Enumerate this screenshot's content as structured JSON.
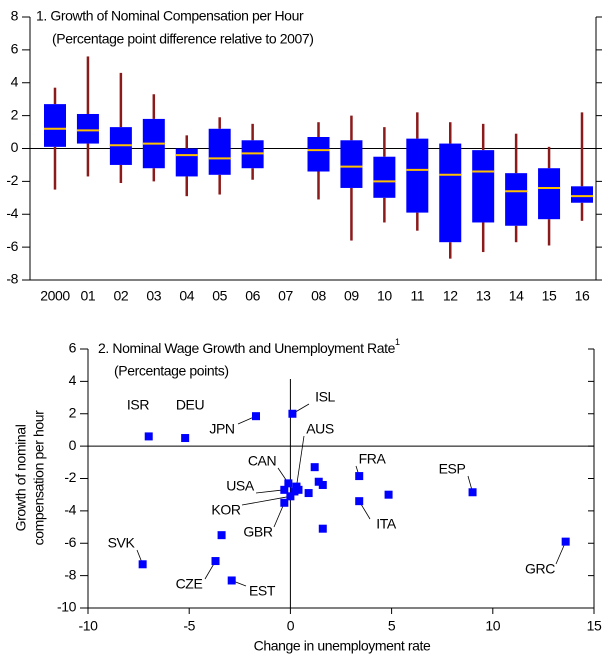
{
  "chart_data": [
    {
      "type": "box",
      "title": "1. Growth of Nominal Compensation per Hour",
      "subtitle": "(Percentage point difference relative to 2007)",
      "categories": [
        "2000",
        "01",
        "02",
        "03",
        "04",
        "05",
        "06",
        "07",
        "08",
        "09",
        "10",
        "11",
        "12",
        "13",
        "14",
        "15",
        "16"
      ],
      "high": [
        3.7,
        5.6,
        4.6,
        3.3,
        0.8,
        1.9,
        1.5,
        null,
        1.6,
        2.0,
        1.3,
        2.2,
        1.6,
        1.5,
        0.9,
        0.1,
        2.2
      ],
      "q3": [
        2.7,
        2.1,
        1.3,
        1.8,
        0.0,
        1.2,
        0.5,
        null,
        0.7,
        0.5,
        -0.5,
        0.6,
        0.3,
        -0.1,
        -1.5,
        -1.2,
        -2.3
      ],
      "median": [
        1.2,
        1.1,
        0.2,
        0.3,
        -0.4,
        -0.6,
        -0.3,
        null,
        -0.1,
        -1.1,
        -2.0,
        -1.3,
        -1.6,
        -1.4,
        -2.6,
        -2.4,
        -2.9
      ],
      "q1": [
        0.1,
        0.3,
        -1.0,
        -1.2,
        -1.7,
        -1.6,
        -1.2,
        null,
        -1.4,
        -2.4,
        -3.0,
        -3.9,
        -5.7,
        -4.5,
        -4.7,
        -4.3,
        -3.3
      ],
      "low": [
        -2.5,
        -1.7,
        -2.1,
        -2.0,
        -2.9,
        -2.8,
        -1.9,
        null,
        -3.1,
        -5.6,
        -4.5,
        -5.0,
        -6.7,
        -6.3,
        -5.7,
        -5.9,
        -4.4
      ],
      "box_color": "#0000ff",
      "whisker_color": "#8b1a1a",
      "median_color": "#ffc000",
      "ylim": [
        -8,
        8
      ],
      "yticks": [
        -8,
        -6,
        -4,
        -2,
        0,
        2,
        4,
        6,
        8
      ]
    },
    {
      "type": "scatter",
      "title": "2. Nominal Wage Growth and Unemployment Rate",
      "title_footnote": "1",
      "subtitle": "(Percentage points)",
      "xlabel": "Change in unemployment rate",
      "ylabel": [
        "Growth of nominal",
        "compensation per hour"
      ],
      "color": "#0000ff",
      "labels": [
        "ISR",
        "DEU",
        "JPN",
        "ISL",
        "AUS",
        "CAN",
        "USA",
        "KOR",
        "GBR",
        "FRA",
        "ESP",
        "ITA",
        "GRC",
        "SVK",
        "CZE",
        "EST",
        null,
        null,
        null,
        null,
        null,
        null,
        null,
        null,
        null
      ],
      "x": [
        -7.0,
        -5.2,
        -1.7,
        0.1,
        0.3,
        -0.1,
        -0.3,
        0.0,
        -0.3,
        3.4,
        9.0,
        3.4,
        13.6,
        -7.3,
        -3.7,
        -2.9,
        1.2,
        1.4,
        1.6,
        4.85,
        1.6,
        -3.4,
        0.9,
        0.2,
        0.4
      ],
      "y": [
        0.6,
        0.5,
        1.85,
        2.0,
        -2.5,
        -2.3,
        -2.7,
        -3.1,
        -3.5,
        -1.85,
        -2.85,
        -3.4,
        -5.9,
        -7.3,
        -7.1,
        -8.3,
        -1.3,
        -2.2,
        -2.4,
        -3.0,
        -5.1,
        -5.5,
        -2.9,
        -2.8,
        -2.7
      ],
      "xlim": [
        -10,
        15
      ],
      "xticks": [
        -10,
        -5,
        0,
        5,
        10,
        15
      ],
      "ylim": [
        -10,
        6
      ],
      "yticks": [
        -10,
        -8,
        -6,
        -4,
        -2,
        0,
        2,
        4,
        6
      ]
    }
  ]
}
